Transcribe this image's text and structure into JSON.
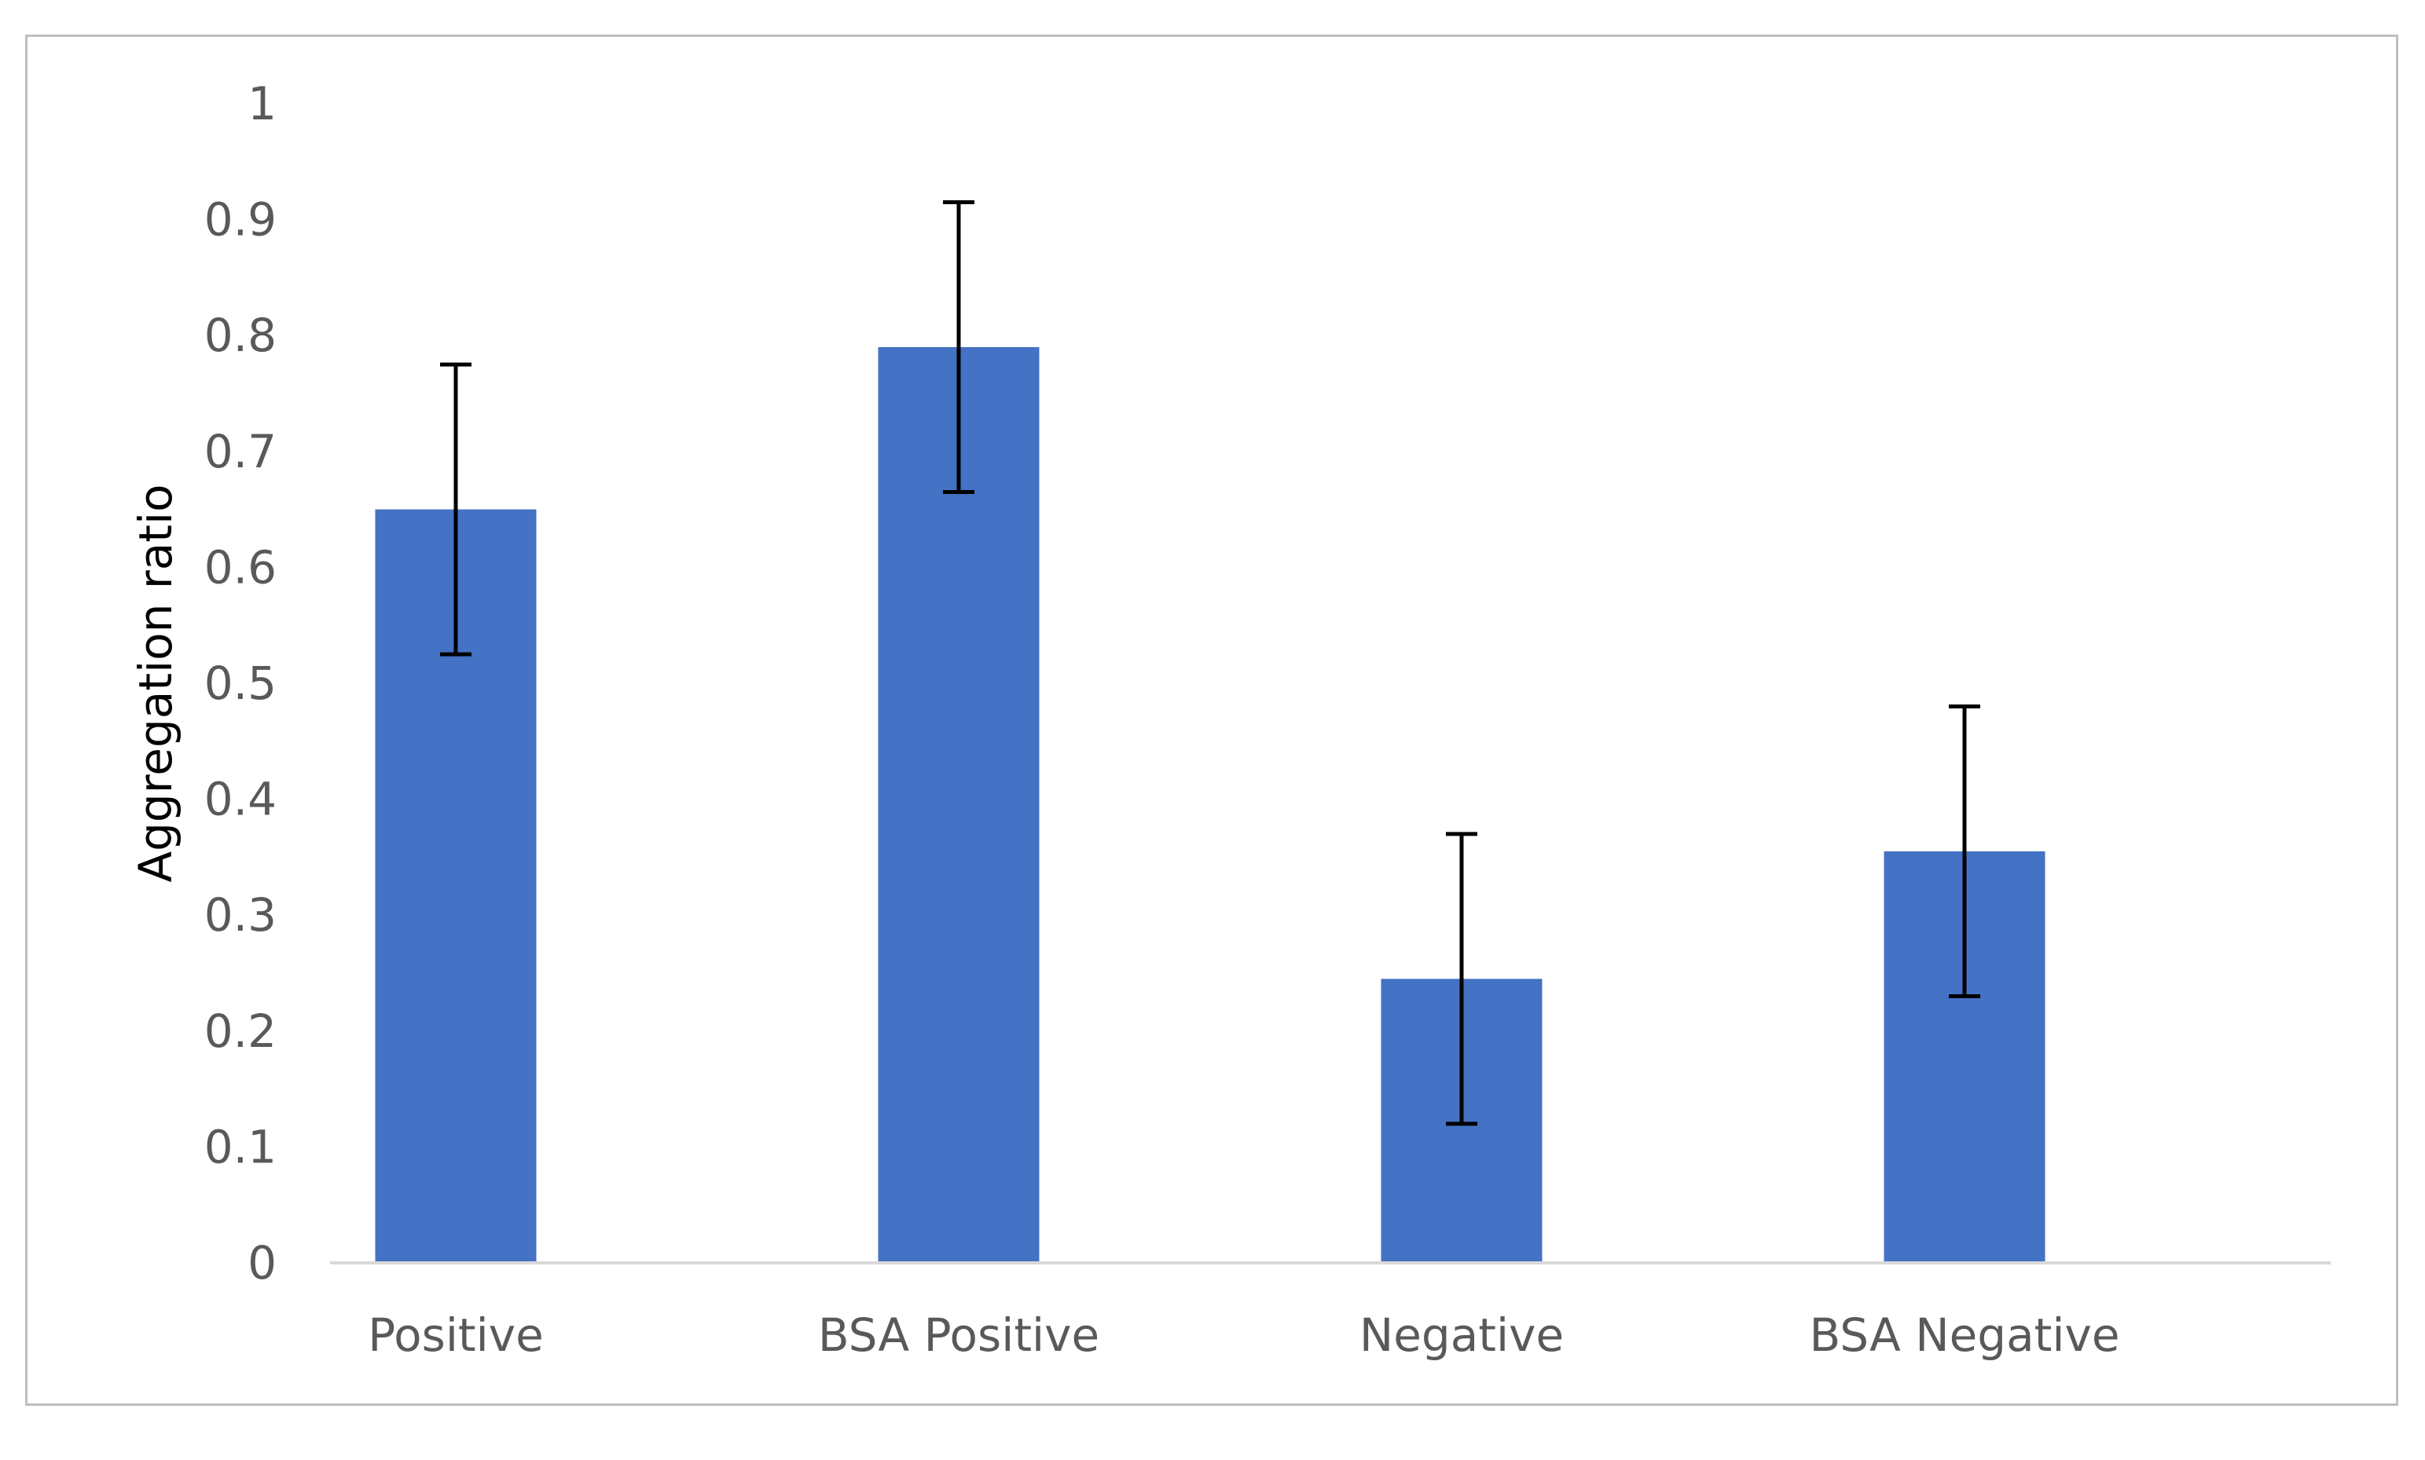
{
  "chart_data": {
    "type": "bar",
    "title": "",
    "xlabel": "",
    "ylabel": "Aggregation ratio",
    "ylim": [
      0,
      1
    ],
    "yticks": [
      "0",
      "0.1",
      "0.2",
      "0.3",
      "0.4",
      "0.5",
      "0.6",
      "0.7",
      "0.8",
      "0.9",
      "1"
    ],
    "categories": [
      "Positive",
      "BSA Positive",
      "Negative",
      "BSA Negative"
    ],
    "values": [
      0.65,
      0.79,
      0.245,
      0.355
    ],
    "error": [
      0.125,
      0.125,
      0.125,
      0.125
    ],
    "grid": false,
    "bar_color": "#4472c4",
    "axis_color": "#d9d9d9",
    "errorbar_color": "#000000"
  }
}
